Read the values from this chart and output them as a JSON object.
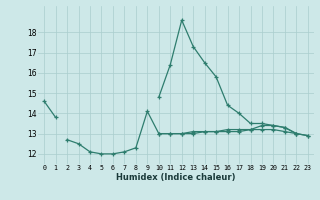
{
  "xlabel": "Humidex (Indice chaleur)",
  "x": [
    0,
    1,
    2,
    3,
    4,
    5,
    6,
    7,
    8,
    9,
    10,
    11,
    12,
    13,
    14,
    15,
    16,
    17,
    18,
    19,
    20,
    21,
    22,
    23
  ],
  "line1": [
    14.6,
    13.8,
    null,
    null,
    null,
    null,
    null,
    null,
    null,
    null,
    14.8,
    16.4,
    18.6,
    17.3,
    16.5,
    15.8,
    14.4,
    14.0,
    13.5,
    13.5,
    13.4,
    13.3,
    13.0,
    null
  ],
  "line2": [
    null,
    null,
    12.7,
    12.5,
    12.1,
    12.0,
    12.0,
    12.1,
    12.3,
    14.1,
    13.0,
    13.0,
    13.0,
    13.0,
    13.1,
    13.1,
    13.2,
    13.2,
    13.2,
    13.4,
    13.4,
    13.3,
    13.0,
    12.9
  ],
  "line3": [
    null,
    null,
    null,
    null,
    null,
    null,
    null,
    null,
    null,
    null,
    13.0,
    13.0,
    13.0,
    13.1,
    13.1,
    13.1,
    13.1,
    13.1,
    13.2,
    13.2,
    13.2,
    13.1,
    13.0,
    12.9
  ],
  "line_color": "#2e7d6e",
  "bg_color": "#cde8e8",
  "grid_color": "#aacece",
  "ylim": [
    11.5,
    19.3
  ],
  "yticks": [
    12,
    13,
    14,
    15,
    16,
    17,
    18
  ],
  "xticks": [
    0,
    1,
    2,
    3,
    4,
    5,
    6,
    7,
    8,
    9,
    10,
    11,
    12,
    13,
    14,
    15,
    16,
    17,
    18,
    19,
    20,
    21,
    22,
    23
  ]
}
